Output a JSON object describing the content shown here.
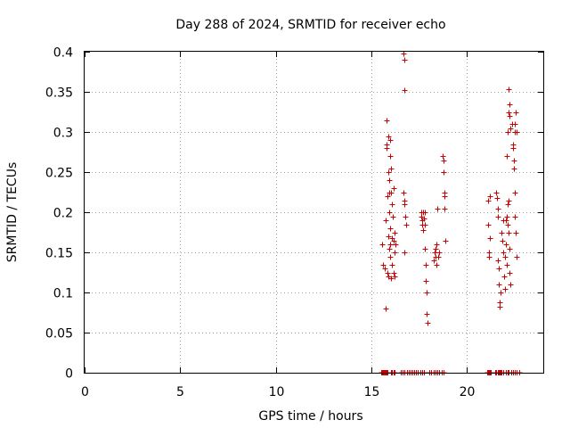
{
  "chart_data": {
    "type": "scatter",
    "title": "Day 288 of 2024, SRMTID for receiver echo",
    "xlabel": "GPS time / hours",
    "ylabel": "SRMTID / TECUs",
    "xlim": [
      0,
      24
    ],
    "ylim": [
      0,
      0.4
    ],
    "xticks": [
      0,
      5,
      10,
      15,
      20
    ],
    "yticks": [
      0,
      0.05,
      0.1,
      0.15,
      0.2,
      0.25,
      0.3,
      0.35,
      0.4
    ],
    "xtick_labels": [
      "0",
      "5",
      "10",
      "15",
      "20"
    ],
    "ytick_labels": [
      "0",
      "0.05",
      "0.1",
      "0.15",
      "0.2",
      "0.25",
      "0.3",
      "0.35",
      "0.4"
    ],
    "grid": true,
    "marker": "+",
    "color": "#cc0000",
    "series": [
      {
        "name": "SRMTID",
        "points": [
          [
            15.55,
            0.16
          ],
          [
            15.6,
            0.134
          ],
          [
            15.7,
            0.13
          ],
          [
            15.75,
            0.08
          ],
          [
            15.75,
            0.19
          ],
          [
            15.8,
            0.315
          ],
          [
            15.8,
            0.285
          ],
          [
            15.82,
            0.28
          ],
          [
            15.85,
            0.22
          ],
          [
            15.85,
            0.125
          ],
          [
            15.88,
            0.295
          ],
          [
            15.9,
            0.25
          ],
          [
            15.9,
            0.17
          ],
          [
            15.9,
            0.12
          ],
          [
            15.92,
            0.24
          ],
          [
            15.93,
            0.155
          ],
          [
            15.95,
            0.225
          ],
          [
            15.95,
            0.2
          ],
          [
            15.97,
            0.16
          ],
          [
            15.98,
            0.145
          ],
          [
            16.0,
            0.29
          ],
          [
            16.0,
            0.27
          ],
          [
            16.0,
            0.18
          ],
          [
            16.02,
            0.118
          ],
          [
            16.05,
            0.255
          ],
          [
            16.05,
            0.225
          ],
          [
            16.08,
            0.21
          ],
          [
            16.1,
            0.168
          ],
          [
            16.1,
            0.135
          ],
          [
            16.12,
            0.195
          ],
          [
            16.15,
            0.165
          ],
          [
            16.15,
            0.125
          ],
          [
            16.18,
            0.23
          ],
          [
            16.2,
            0.15
          ],
          [
            16.2,
            0.12
          ],
          [
            16.22,
            0.175
          ],
          [
            16.25,
            0.16
          ],
          [
            16.7,
            0.398
          ],
          [
            16.72,
            0.39
          ],
          [
            16.75,
            0.352
          ],
          [
            16.7,
            0.225
          ],
          [
            16.72,
            0.215
          ],
          [
            16.75,
            0.21
          ],
          [
            16.78,
            0.195
          ],
          [
            16.8,
            0.185
          ],
          [
            16.72,
            0.15
          ],
          [
            17.6,
            0.2
          ],
          [
            17.62,
            0.195
          ],
          [
            17.65,
            0.19
          ],
          [
            17.68,
            0.185
          ],
          [
            17.7,
            0.2
          ],
          [
            17.72,
            0.178
          ],
          [
            17.75,
            0.192
          ],
          [
            17.78,
            0.2
          ],
          [
            17.8,
            0.185
          ],
          [
            17.82,
            0.155
          ],
          [
            17.85,
            0.135
          ],
          [
            17.85,
            0.115
          ],
          [
            17.88,
            0.1
          ],
          [
            17.9,
            0.073
          ],
          [
            17.92,
            0.062
          ],
          [
            18.25,
            0.14
          ],
          [
            18.3,
            0.15
          ],
          [
            18.35,
            0.145
          ],
          [
            18.38,
            0.155
          ],
          [
            18.4,
            0.16
          ],
          [
            18.42,
            0.135
          ],
          [
            18.45,
            0.205
          ],
          [
            18.5,
            0.145
          ],
          [
            18.55,
            0.15
          ],
          [
            18.75,
            0.27
          ],
          [
            18.78,
            0.265
          ],
          [
            18.8,
            0.25
          ],
          [
            18.82,
            0.225
          ],
          [
            18.85,
            0.22
          ],
          [
            18.85,
            0.205
          ],
          [
            18.88,
            0.165
          ],
          [
            21.1,
            0.215
          ],
          [
            21.12,
            0.185
          ],
          [
            21.15,
            0.15
          ],
          [
            21.18,
            0.145
          ],
          [
            21.2,
            0.168
          ],
          [
            21.22,
            0.22
          ],
          [
            21.55,
            0.225
          ],
          [
            21.58,
            0.218
          ],
          [
            21.6,
            0.205
          ],
          [
            21.62,
            0.195
          ],
          [
            21.62,
            0.14
          ],
          [
            21.65,
            0.13
          ],
          [
            21.68,
            0.11
          ],
          [
            21.7,
            0.088
          ],
          [
            21.72,
            0.082
          ],
          [
            21.75,
            0.1
          ],
          [
            21.8,
            0.175
          ],
          [
            21.85,
            0.165
          ],
          [
            21.9,
            0.19
          ],
          [
            21.92,
            0.15
          ],
          [
            21.95,
            0.12
          ],
          [
            21.98,
            0.105
          ],
          [
            22.0,
            0.145
          ],
          [
            22.02,
            0.19
          ],
          [
            22.05,
            0.16
          ],
          [
            22.08,
            0.135
          ],
          [
            22.1,
            0.195
          ],
          [
            22.12,
            0.185
          ],
          [
            22.15,
            0.21
          ],
          [
            22.18,
            0.215
          ],
          [
            22.2,
            0.175
          ],
          [
            22.22,
            0.155
          ],
          [
            22.25,
            0.125
          ],
          [
            22.28,
            0.11
          ],
          [
            22.1,
            0.27
          ],
          [
            22.15,
            0.3
          ],
          [
            22.2,
            0.325
          ],
          [
            22.22,
            0.335
          ],
          [
            22.25,
            0.32
          ],
          [
            22.2,
            0.353
          ],
          [
            22.28,
            0.305
          ],
          [
            22.35,
            0.31
          ],
          [
            22.4,
            0.285
          ],
          [
            22.42,
            0.28
          ],
          [
            22.45,
            0.265
          ],
          [
            22.48,
            0.255
          ],
          [
            22.5,
            0.3
          ],
          [
            22.52,
            0.31
          ],
          [
            22.55,
            0.325
          ],
          [
            22.5,
            0.225
          ],
          [
            22.52,
            0.195
          ],
          [
            22.55,
            0.175
          ],
          [
            22.58,
            0.145
          ],
          [
            22.6,
            0.3
          ]
        ],
        "zero_points_x": [
          15.5,
          15.55,
          15.6,
          15.65,
          15.7,
          15.75,
          15.8,
          15.85,
          16.05,
          16.1,
          16.15,
          16.2,
          16.55,
          16.65,
          16.75,
          16.85,
          16.95,
          17.05,
          17.15,
          17.25,
          17.35,
          17.45,
          17.55,
          17.65,
          17.75,
          18.05,
          18.15,
          18.25,
          18.35,
          18.45,
          18.55,
          18.7,
          18.8,
          21.05,
          21.1,
          21.15,
          21.2,
          21.25,
          21.5,
          21.55,
          21.6,
          21.65,
          21.7,
          21.75,
          21.8,
          21.9,
          22.05,
          22.15,
          22.2,
          22.3,
          22.4,
          22.5,
          22.6,
          22.75
        ]
      }
    ]
  }
}
